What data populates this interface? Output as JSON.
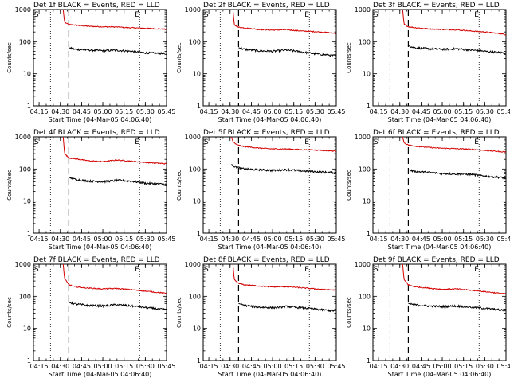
{
  "figure": {
    "title_template": "Det {n}f BLACK = Events, RED = LLD",
    "xlabel": "Start Time (04-Mar-05 04:06:40)",
    "ylabel": "Counts/sec",
    "start_marker": "S",
    "end_marker": "E",
    "colors": {
      "events": "#000000",
      "lld": "#d40000",
      "axes": "#000000",
      "background": "#ffffff"
    }
  },
  "chart_data": [
    {
      "type": "line",
      "title": "Det 1f BLACK = Events, RED = LLD",
      "detector": 1,
      "x_ticks": [
        "04:15",
        "04:30",
        "04:45",
        "05:00",
        "05:15",
        "05:30",
        "05:45"
      ],
      "y_ticks": [
        "1",
        "10",
        "100",
        "1000"
      ],
      "yscale": "log",
      "ylim": [
        1,
        1000
      ],
      "xlabel": "Start Time (04-Mar-05 04:06:40)",
      "ylabel": "Counts/sec",
      "dotted_lines": [
        "04:23",
        "05:26"
      ],
      "dashed_line": "04:36",
      "series": [
        {
          "name": "LLD",
          "x": [
            "04:32",
            "04:33",
            "04:36",
            "04:40",
            "04:50",
            "05:00",
            "05:10",
            "05:20",
            "05:30",
            "05:40",
            "05:45"
          ],
          "y": [
            1000,
            400,
            340,
            330,
            300,
            290,
            285,
            270,
            260,
            250,
            240
          ]
        },
        {
          "name": "Events",
          "x": [
            "04:36",
            "04:40",
            "04:50",
            "05:00",
            "05:10",
            "05:20",
            "05:30",
            "05:40",
            "05:45"
          ],
          "y": [
            65,
            58,
            55,
            52,
            54,
            50,
            45,
            43,
            42
          ]
        }
      ]
    },
    {
      "type": "line",
      "title": "Det 2f BLACK = Events, RED = LLD",
      "detector": 2,
      "x_ticks": [
        "04:15",
        "04:30",
        "04:45",
        "05:00",
        "05:15",
        "05:30",
        "05:45"
      ],
      "y_ticks": [
        "1",
        "10",
        "100",
        "1000"
      ],
      "yscale": "log",
      "ylim": [
        1,
        1000
      ],
      "xlabel": "Start Time (04-Mar-05 04:06:40)",
      "ylabel": "Counts/sec",
      "dotted_lines": [
        "04:23",
        "05:26"
      ],
      "dashed_line": "04:36",
      "series": [
        {
          "name": "LLD",
          "x": [
            "04:32",
            "04:33",
            "04:36",
            "04:40",
            "04:50",
            "05:00",
            "05:10",
            "05:20",
            "05:30",
            "05:40",
            "05:45"
          ],
          "y": [
            1000,
            330,
            280,
            270,
            240,
            230,
            235,
            215,
            205,
            190,
            180
          ]
        },
        {
          "name": "Events",
          "x": [
            "04:36",
            "04:40",
            "04:50",
            "05:00",
            "05:10",
            "05:20",
            "05:30",
            "05:40",
            "05:45"
          ],
          "y": [
            65,
            58,
            52,
            50,
            55,
            48,
            42,
            38,
            36
          ]
        }
      ]
    },
    {
      "type": "line",
      "title": "Det 3f BLACK = Events, RED = LLD",
      "detector": 3,
      "x_ticks": [
        "04:15",
        "04:30",
        "04:45",
        "05:00",
        "05:15",
        "05:30",
        "05:45"
      ],
      "y_ticks": [
        "1",
        "10",
        "100",
        "1000"
      ],
      "yscale": "log",
      "ylim": [
        1,
        1000
      ],
      "xlabel": "Start Time (04-Mar-05 04:06:40)",
      "ylabel": "Counts/sec",
      "dotted_lines": [
        "04:23",
        "05:26"
      ],
      "dashed_line": "04:36",
      "series": [
        {
          "name": "LLD",
          "x": [
            "04:32",
            "04:33",
            "04:36",
            "04:40",
            "04:50",
            "05:00",
            "05:10",
            "05:20",
            "05:30",
            "05:40",
            "05:45"
          ],
          "y": [
            1000,
            350,
            290,
            275,
            250,
            240,
            235,
            215,
            200,
            180,
            165
          ]
        },
        {
          "name": "Events",
          "x": [
            "04:36",
            "04:40",
            "04:50",
            "05:00",
            "05:10",
            "05:20",
            "05:30",
            "05:40",
            "05:45"
          ],
          "y": [
            75,
            65,
            60,
            58,
            60,
            55,
            50,
            46,
            44
          ]
        }
      ]
    },
    {
      "type": "line",
      "title": "Det 4f BLACK = Events, RED = LLD",
      "detector": 4,
      "x_ticks": [
        "04:15",
        "04:30",
        "04:45",
        "05:00",
        "05:15",
        "05:30",
        "05:45"
      ],
      "y_ticks": [
        "1",
        "10",
        "100",
        "1000"
      ],
      "yscale": "log",
      "ylim": [
        1,
        1000
      ],
      "xlabel": "Start Time (04-Mar-05 04:06:40)",
      "ylabel": "Counts/sec",
      "dotted_lines": [
        "04:23",
        "05:26"
      ],
      "dashed_line": "04:36",
      "series": [
        {
          "name": "LLD",
          "x": [
            "04:32",
            "04:33",
            "04:36",
            "04:40",
            "04:50",
            "05:00",
            "05:10",
            "05:20",
            "05:30",
            "05:40",
            "05:45"
          ],
          "y": [
            1000,
            300,
            220,
            210,
            180,
            170,
            190,
            175,
            160,
            150,
            145
          ]
        },
        {
          "name": "Events",
          "x": [
            "04:36",
            "04:40",
            "04:50",
            "05:00",
            "05:10",
            "05:20",
            "05:30",
            "05:40",
            "05:45"
          ],
          "y": [
            55,
            48,
            42,
            40,
            44,
            42,
            36,
            34,
            33
          ]
        }
      ]
    },
    {
      "type": "line",
      "title": "Det 5f BLACK = Events, RED = LLD",
      "detector": 5,
      "x_ticks": [
        "04:15",
        "04:30",
        "04:45",
        "05:00",
        "05:15",
        "05:30",
        "05:45"
      ],
      "y_ticks": [
        "1",
        "10",
        "100",
        "1000"
      ],
      "yscale": "log",
      "ylim": [
        1,
        1000
      ],
      "xlabel": "Start Time (04-Mar-05 04:06:40)",
      "ylabel": "Counts/sec",
      "dotted_lines": [
        "04:23",
        "05:26"
      ],
      "dashed_line": "04:36",
      "series": [
        {
          "name": "LLD",
          "x": [
            "04:31",
            "04:32",
            "04:35",
            "04:40",
            "04:50",
            "05:00",
            "05:10",
            "05:20",
            "05:30",
            "05:40",
            "05:45"
          ],
          "y": [
            1000,
            700,
            560,
            500,
            450,
            420,
            420,
            400,
            390,
            370,
            360
          ]
        },
        {
          "name": "Events",
          "x": [
            "04:31",
            "04:33",
            "04:36",
            "04:40",
            "04:50",
            "05:00",
            "05:10",
            "05:20",
            "05:30",
            "05:40",
            "05:45"
          ],
          "y": [
            140,
            120,
            110,
            100,
            95,
            90,
            95,
            88,
            82,
            78,
            76
          ]
        }
      ]
    },
    {
      "type": "line",
      "title": "Det 6f BLACK = Events, RED = LLD",
      "detector": 6,
      "x_ticks": [
        "04:15",
        "04:30",
        "04:45",
        "05:00",
        "05:15",
        "05:30",
        "05:45"
      ],
      "y_ticks": [
        "1",
        "10",
        "100",
        "1000"
      ],
      "yscale": "log",
      "ylim": [
        1,
        1000
      ],
      "xlabel": "Start Time (04-Mar-05 04:06:40)",
      "ylabel": "Counts/sec",
      "dotted_lines": [
        "04:23",
        "05:26"
      ],
      "dashed_line": "04:36",
      "series": [
        {
          "name": "LLD",
          "x": [
            "04:32",
            "04:33",
            "04:36",
            "04:40",
            "04:50",
            "05:00",
            "05:10",
            "05:20",
            "05:30",
            "05:40",
            "05:45"
          ],
          "y": [
            1000,
            650,
            560,
            520,
            470,
            440,
            430,
            410,
            380,
            350,
            340
          ]
        },
        {
          "name": "Events",
          "x": [
            "04:36",
            "04:40",
            "04:50",
            "05:00",
            "05:10",
            "05:20",
            "05:30",
            "05:40",
            "05:45"
          ],
          "y": [
            95,
            85,
            78,
            72,
            70,
            68,
            60,
            55,
            52
          ]
        }
      ]
    },
    {
      "type": "line",
      "title": "Det 7f BLACK = Events, RED = LLD",
      "detector": 7,
      "x_ticks": [
        "04:15",
        "04:30",
        "04:45",
        "05:00",
        "05:15",
        "05:30",
        "05:45"
      ],
      "y_ticks": [
        "1",
        "10",
        "100",
        "1000"
      ],
      "yscale": "log",
      "ylim": [
        1,
        1000
      ],
      "xlabel": "Start Time (04-Mar-05 04:06:40)",
      "ylabel": "Counts/sec",
      "dotted_lines": [
        "04:23",
        "05:26"
      ],
      "dashed_line": "04:36",
      "series": [
        {
          "name": "LLD",
          "x": [
            "04:32",
            "04:33",
            "04:36",
            "04:40",
            "04:50",
            "05:00",
            "05:10",
            "05:20",
            "05:30",
            "05:40",
            "05:45"
          ],
          "y": [
            1000,
            350,
            230,
            200,
            180,
            170,
            175,
            160,
            145,
            130,
            125
          ]
        },
        {
          "name": "Events",
          "x": [
            "04:36",
            "04:40",
            "04:50",
            "05:00",
            "05:10",
            "05:20",
            "05:30",
            "05:40",
            "05:45"
          ],
          "y": [
            65,
            58,
            52,
            50,
            55,
            50,
            45,
            40,
            38
          ]
        }
      ]
    },
    {
      "type": "line",
      "title": "Det 8f BLACK = Events, RED = LLD",
      "detector": 8,
      "x_ticks": [
        "04:15",
        "04:30",
        "04:45",
        "05:00",
        "05:15",
        "05:30",
        "05:45"
      ],
      "y_ticks": [
        "1",
        "10",
        "100",
        "1000"
      ],
      "yscale": "log",
      "ylim": [
        1,
        1000
      ],
      "xlabel": "Start Time (04-Mar-05 04:06:40)",
      "ylabel": "Counts/sec",
      "dotted_lines": [
        "04:23",
        "05:26"
      ],
      "dashed_line": "04:36",
      "series": [
        {
          "name": "LLD",
          "x": [
            "04:32",
            "04:33",
            "04:36",
            "04:40",
            "04:50",
            "05:00",
            "05:10",
            "05:20",
            "05:30",
            "05:40",
            "05:45"
          ],
          "y": [
            1000,
            330,
            250,
            230,
            210,
            195,
            200,
            185,
            170,
            160,
            155
          ]
        },
        {
          "name": "Events",
          "x": [
            "04:36",
            "04:40",
            "04:50",
            "05:00",
            "05:10",
            "05:20",
            "05:30",
            "05:40",
            "05:45"
          ],
          "y": [
            60,
            52,
            46,
            44,
            48,
            44,
            40,
            36,
            35
          ]
        }
      ]
    },
    {
      "type": "line",
      "title": "Det 9f BLACK = Events, RED = LLD",
      "detector": 9,
      "x_ticks": [
        "04:15",
        "04:30",
        "04:45",
        "05:00",
        "05:15",
        "05:30",
        "05:45"
      ],
      "y_ticks": [
        "1",
        "10",
        "100",
        "1000"
      ],
      "yscale": "log",
      "ylim": [
        1,
        1000
      ],
      "xlabel": "Start Time (04-Mar-05 04:06:40)",
      "ylabel": "Counts/sec",
      "dotted_lines": [
        "04:23",
        "05:26"
      ],
      "dashed_line": "04:36",
      "series": [
        {
          "name": "LLD",
          "x": [
            "04:32",
            "04:33",
            "04:36",
            "04:40",
            "04:50",
            "05:00",
            "05:10",
            "05:20",
            "05:30",
            "05:40",
            "05:45"
          ],
          "y": [
            1000,
            330,
            230,
            200,
            180,
            165,
            170,
            155,
            140,
            125,
            120
          ]
        },
        {
          "name": "Events",
          "x": [
            "04:36",
            "04:40",
            "04:50",
            "05:00",
            "05:10",
            "05:20",
            "05:30",
            "05:40",
            "05:45"
          ],
          "y": [
            60,
            55,
            50,
            48,
            50,
            46,
            42,
            38,
            36
          ]
        }
      ]
    }
  ]
}
